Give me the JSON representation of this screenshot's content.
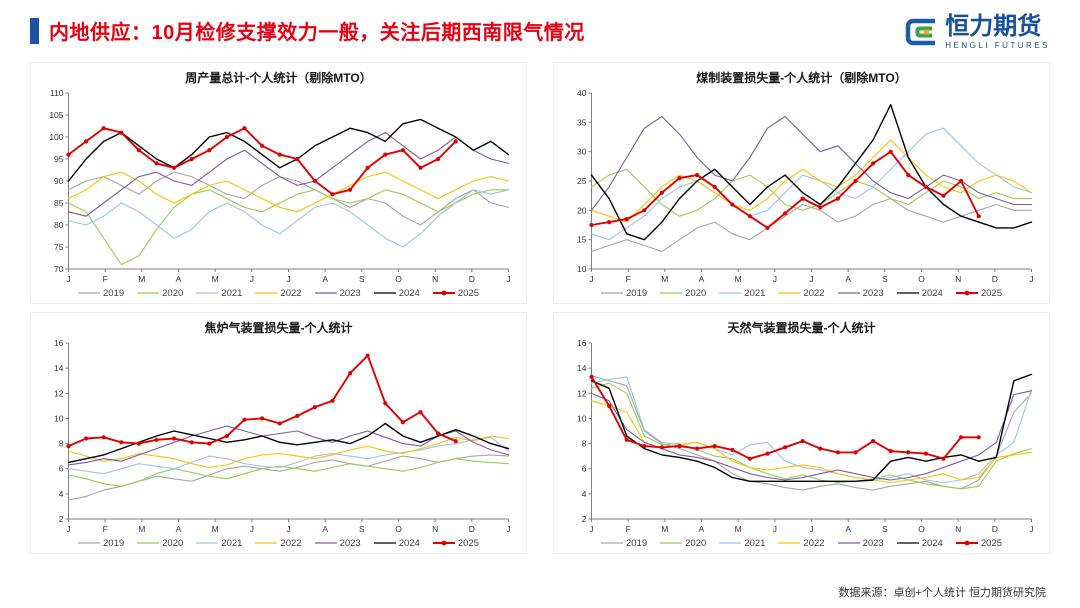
{
  "header": {
    "title": "内地供应：10月检修支撑效力一般，关注后期西南限气情况",
    "accent_color": "#2050a0",
    "title_color": "#e60012"
  },
  "logo": {
    "cn": "恒力期货",
    "en": "HENGLI FUTURES",
    "brand_color": "#15509e",
    "icon_colors": [
      "#1b5cab",
      "#35a74a",
      "#f5a623"
    ]
  },
  "footer": {
    "source": "数据来源：卓创+个人统计  恒力期货研究院"
  },
  "chart_data": [
    {
      "type": "line",
      "title": "周产量总计-个人统计（剔除MTO）",
      "ylim": [
        70,
        110
      ],
      "yticks": [
        70,
        75,
        80,
        85,
        90,
        95,
        100,
        105,
        110
      ],
      "x_labels": [
        "J",
        "F",
        "M",
        "A",
        "M",
        "J",
        "J",
        "A",
        "S",
        "O",
        "N",
        "D",
        "J"
      ],
      "grid": false,
      "legend_position": "bottom",
      "series": [
        {
          "name": "2019",
          "color": "#a6a6a6",
          "values": [
            88,
            90,
            91,
            89,
            87,
            90,
            92,
            91,
            89,
            87,
            86,
            89,
            91,
            90,
            88,
            86,
            84,
            86,
            85,
            82,
            80,
            83,
            86,
            88,
            85,
            84
          ]
        },
        {
          "name": "2020",
          "color": "#92d050",
          "values": [
            85,
            83,
            77,
            71,
            73,
            79,
            84,
            87,
            88,
            86,
            84,
            83,
            85,
            87,
            88,
            86,
            85,
            86,
            88,
            87,
            85,
            83,
            85,
            87,
            88,
            88
          ]
        },
        {
          "name": "2021",
          "color": "#9dc3e6",
          "values": [
            81,
            80,
            82,
            85,
            83,
            80,
            77,
            79,
            83,
            85,
            83,
            80,
            78,
            81,
            84,
            85,
            83,
            80,
            77,
            75,
            78,
            82,
            85,
            88,
            87,
            88
          ]
        },
        {
          "name": "2022",
          "color": "#ffc000",
          "values": [
            86,
            88,
            91,
            92,
            90,
            87,
            85,
            87,
            89,
            90,
            88,
            86,
            84,
            83,
            85,
            87,
            89,
            91,
            92,
            90,
            88,
            86,
            88,
            90,
            91,
            90
          ]
        },
        {
          "name": "2023",
          "color": "#7b5aa6",
          "values": [
            83,
            82,
            85,
            88,
            91,
            92,
            90,
            89,
            92,
            95,
            97,
            94,
            91,
            89,
            90,
            93,
            96,
            99,
            101,
            98,
            95,
            97,
            100,
            97,
            95,
            94
          ]
        },
        {
          "name": "2024",
          "color": "#000000",
          "values": [
            90,
            95,
            99,
            101,
            98,
            95,
            93,
            96,
            100,
            101,
            99,
            96,
            93,
            95,
            98,
            100,
            102,
            101,
            99,
            103,
            104,
            102,
            100,
            97,
            99,
            96
          ]
        },
        {
          "name": "2025",
          "color": "#e00000",
          "marker": true,
          "values": [
            96,
            99,
            102,
            101,
            97,
            94,
            93,
            95,
            97,
            100,
            102,
            98,
            96,
            95,
            90,
            87,
            88,
            93,
            96,
            97,
            93,
            95,
            99
          ]
        }
      ]
    },
    {
      "type": "line",
      "title": "煤制装置损失量-个人统计（剔除MTO）",
      "ylim": [
        10,
        40
      ],
      "yticks": [
        10,
        15,
        20,
        25,
        30,
        35,
        40
      ],
      "x_labels": [
        "J",
        "F",
        "M",
        "A",
        "M",
        "J",
        "J",
        "A",
        "S",
        "O",
        "N",
        "D",
        "J"
      ],
      "grid": false,
      "legend_position": "bottom",
      "series": [
        {
          "name": "2019",
          "color": "#a6a6a6",
          "values": [
            13,
            14,
            15,
            14,
            13,
            15,
            17,
            18,
            16,
            15,
            17,
            19,
            21,
            20,
            18,
            19,
            21,
            22,
            20,
            19,
            18,
            19,
            20,
            21,
            20,
            20
          ]
        },
        {
          "name": "2020",
          "color": "#92d050",
          "values": [
            24,
            26,
            27,
            24,
            21,
            19,
            20,
            22,
            25,
            26,
            24,
            21,
            20,
            21,
            23,
            25,
            24,
            22,
            21,
            23,
            25,
            24,
            22,
            23,
            22,
            22
          ]
        },
        {
          "name": "2021",
          "color": "#9dc3e6",
          "values": [
            16,
            15,
            17,
            19,
            22,
            24,
            25,
            23,
            21,
            19,
            20,
            23,
            26,
            25,
            23,
            22,
            24,
            27,
            30,
            33,
            34,
            31,
            28,
            26,
            24,
            23
          ]
        },
        {
          "name": "2022",
          "color": "#ffc000",
          "values": [
            20,
            19,
            18,
            21,
            24,
            26,
            25,
            23,
            21,
            20,
            22,
            25,
            27,
            25,
            24,
            26,
            29,
            32,
            29,
            26,
            24,
            23,
            25,
            26,
            25,
            23
          ]
        },
        {
          "name": "2023",
          "color": "#7b5aa6",
          "values": [
            20,
            24,
            29,
            34,
            36,
            33,
            29,
            26,
            25,
            29,
            34,
            36,
            33,
            30,
            31,
            28,
            25,
            23,
            22,
            24,
            26,
            25,
            23,
            22,
            21,
            21
          ]
        },
        {
          "name": "2024",
          "color": "#000000",
          "values": [
            26,
            22,
            16,
            15,
            18,
            22,
            25,
            27,
            24,
            21,
            24,
            26,
            23,
            21,
            24,
            28,
            32,
            38,
            29,
            24,
            21,
            19,
            18,
            17,
            17,
            18
          ]
        },
        {
          "name": "2025",
          "color": "#e00000",
          "marker": true,
          "values": [
            17.5,
            18,
            18.5,
            20,
            23,
            25.5,
            26,
            24,
            21,
            19,
            17,
            19.5,
            22,
            20.5,
            22,
            25,
            28,
            30,
            26,
            24,
            22.5,
            25,
            19
          ]
        }
      ]
    },
    {
      "type": "line",
      "title": "焦炉气装置损失量-个人统计",
      "ylim": [
        2,
        16
      ],
      "yticks": [
        2,
        4,
        6,
        8,
        10,
        12,
        14,
        16
      ],
      "x_labels": [
        "J",
        "F",
        "M",
        "A",
        "M",
        "J",
        "J",
        "A",
        "S",
        "O",
        "N",
        "D",
        "J"
      ],
      "grid": false,
      "legend_position": "bottom",
      "series": [
        {
          "name": "2019",
          "color": "#a6a6a6",
          "values": [
            3.5,
            3.8,
            4.3,
            4.6,
            5,
            5.4,
            5.2,
            5,
            5.5,
            6,
            6.2,
            6,
            5.8,
            6.1,
            6.5,
            6.7,
            6.4,
            6.2,
            6.6,
            7,
            6.8,
            6.5,
            6.8,
            7,
            7.1,
            7
          ]
        },
        {
          "name": "2020",
          "color": "#92d050",
          "values": [
            5.5,
            5.2,
            4.8,
            4.6,
            5,
            5.6,
            6,
            5.7,
            5.4,
            5.2,
            5.6,
            6,
            6.2,
            6,
            5.8,
            6.1,
            6.4,
            6.2,
            6,
            5.8,
            6.1,
            6.5,
            6.8,
            6.6,
            6.5,
            6.4
          ]
        },
        {
          "name": "2021",
          "color": "#9dc3e6",
          "values": [
            6,
            5.8,
            5.6,
            6,
            6.4,
            6.2,
            6,
            6.5,
            7,
            6.8,
            6.4,
            6.2,
            6.1,
            6.5,
            7,
            7.2,
            7,
            6.8,
            7.1,
            7.3,
            7.5,
            7.8,
            8,
            8.3,
            8.5,
            7.4
          ]
        },
        {
          "name": "2022",
          "color": "#ffc000",
          "values": [
            7.4,
            7,
            6.6,
            6.8,
            7.2,
            7,
            6.8,
            6.4,
            6.1,
            6.3,
            6.8,
            7.1,
            7.2,
            7,
            6.8,
            7.1,
            7.5,
            7.8,
            7.4,
            7.2,
            7.6,
            8,
            8.5,
            8.2,
            8.6,
            8.4
          ]
        },
        {
          "name": "2023",
          "color": "#7b5aa6",
          "values": [
            6.3,
            6.5,
            6.8,
            6.6,
            7.1,
            7.6,
            8.1,
            8.6,
            9,
            9.4,
            9,
            8.6,
            8.8,
            9,
            8.5,
            8.1,
            8.6,
            9,
            8.5,
            8,
            7.8,
            8.6,
            9,
            8.1,
            7.5,
            7.1
          ]
        },
        {
          "name": "2024",
          "color": "#000000",
          "values": [
            6.5,
            6.8,
            7.1,
            7.6,
            8.1,
            8.6,
            9,
            8.7,
            8.4,
            8.1,
            8.3,
            8.6,
            8.1,
            7.9,
            8.1,
            8.3,
            8,
            8.6,
            9.6,
            8.6,
            8.1,
            8.6,
            9.1,
            8.6,
            8,
            7.6
          ]
        },
        {
          "name": "2025",
          "color": "#e00000",
          "marker": true,
          "values": [
            7.8,
            8.4,
            8.5,
            8.1,
            8,
            8.3,
            8.4,
            8.1,
            8,
            8.6,
            9.9,
            10,
            9.6,
            10.2,
            10.9,
            11.4,
            13.6,
            15,
            11.2,
            9.7,
            10.5,
            8.8,
            8.2
          ]
        }
      ]
    },
    {
      "type": "line",
      "title": "天然气装置损失量-个人统计",
      "ylim": [
        2,
        16
      ],
      "yticks": [
        2,
        4,
        6,
        8,
        10,
        12,
        14,
        16
      ],
      "x_labels": [
        "J",
        "F",
        "M",
        "A",
        "M",
        "J",
        "J",
        "A",
        "S",
        "O",
        "N",
        "D",
        "J"
      ],
      "grid": false,
      "legend_position": "bottom",
      "series": [
        {
          "name": "2019",
          "color": "#a6a6a6",
          "values": [
            13.4,
            13,
            12.6,
            9,
            8,
            7.6,
            7.1,
            6.6,
            5.6,
            5,
            4.8,
            4.5,
            4.3,
            4.6,
            4.8,
            4.5,
            4.3,
            4.6,
            4.8,
            5,
            4.6,
            4.4,
            5.1,
            7,
            10.5,
            12
          ]
        },
        {
          "name": "2020",
          "color": "#92d050",
          "values": [
            12.4,
            12.8,
            12,
            8.6,
            7.9,
            8,
            7.5,
            7,
            6.8,
            6.1,
            5.6,
            5.2,
            5.5,
            5.1,
            4.9,
            5,
            5.2,
            5.5,
            5.1,
            4.8,
            4.6,
            4.4,
            4.6,
            6.6,
            7.2,
            7.6
          ]
        },
        {
          "name": "2021",
          "color": "#9dc3e6",
          "values": [
            12.8,
            13.1,
            13.3,
            9.1,
            8.1,
            7.9,
            8.1,
            7.6,
            7.1,
            7.9,
            8.1,
            6.6,
            6.1,
            5.9,
            5.6,
            5.3,
            5.1,
            5.3,
            5.6,
            5.1,
            4.9,
            5.1,
            5.6,
            7.1,
            8.1,
            12.3
          ]
        },
        {
          "name": "2022",
          "color": "#ffc000",
          "values": [
            11.4,
            11,
            10.5,
            8.1,
            7.6,
            7.9,
            8.1,
            7.6,
            6.6,
            6.1,
            5.9,
            6.1,
            6.3,
            6.1,
            5.6,
            5.3,
            5.1,
            4.9,
            5.1,
            5.3,
            5.6,
            5.1,
            5.3,
            6.9,
            7.1,
            7.3
          ]
        },
        {
          "name": "2023",
          "color": "#7b5aa6",
          "values": [
            12,
            11.4,
            9.1,
            8.1,
            7.6,
            7.1,
            6.9,
            6.6,
            6.1,
            5.6,
            5.3,
            5.1,
            5.3,
            5.6,
            5.9,
            5.6,
            5.3,
            5.1,
            5.3,
            5.6,
            6.1,
            6.6,
            7.1,
            8.1,
            11.9,
            12.2
          ]
        },
        {
          "name": "2024",
          "color": "#000000",
          "values": [
            13,
            12.4,
            8.6,
            7.6,
            7.1,
            6.9,
            6.6,
            6.1,
            5.3,
            5,
            5,
            5,
            5,
            5,
            5,
            5,
            5.1,
            6.6,
            6.9,
            6.6,
            6.9,
            7.1,
            6.6,
            6.9,
            13,
            13.5
          ]
        },
        {
          "name": "2025",
          "color": "#e00000",
          "marker": true,
          "values": [
            13.3,
            11,
            8.3,
            7.8,
            7.7,
            7.8,
            7.6,
            7.8,
            7.5,
            6.8,
            7.2,
            7.7,
            8.2,
            7.6,
            7.3,
            7.3,
            8.2,
            7.4,
            7.3,
            7.2,
            6.8,
            8.5,
            8.5
          ]
        }
      ]
    }
  ]
}
